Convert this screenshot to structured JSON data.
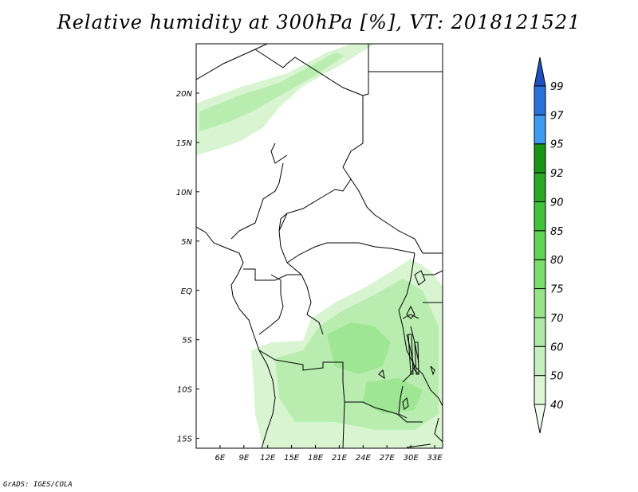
{
  "title": "Relative humidity at 300hPa [%], VT: 2018121521",
  "credit": "GrADS: IGES/COLA",
  "map": {
    "lon_range": [
      3,
      34
    ],
    "lat_range": [
      -16,
      25
    ],
    "lon_ticks": [
      {
        "value": 6,
        "label": "6E"
      },
      {
        "value": 9,
        "label": "9E"
      },
      {
        "value": 12,
        "label": "12E"
      },
      {
        "value": 15,
        "label": "15E"
      },
      {
        "value": 18,
        "label": "18E"
      },
      {
        "value": 21,
        "label": "21E"
      },
      {
        "value": 24,
        "label": "24E"
      },
      {
        "value": 27,
        "label": "27E"
      },
      {
        "value": 30,
        "label": "30E"
      },
      {
        "value": 33,
        "label": "33E"
      }
    ],
    "lat_ticks": [
      {
        "value": 20,
        "label": "20N"
      },
      {
        "value": 15,
        "label": "15N"
      },
      {
        "value": 10,
        "label": "10N"
      },
      {
        "value": 5,
        "label": "5N"
      },
      {
        "value": 0,
        "label": "EQ"
      },
      {
        "value": -5,
        "label": "5S"
      },
      {
        "value": -10,
        "label": "10S"
      },
      {
        "value": -15,
        "label": "15S"
      }
    ]
  },
  "colorbar": {
    "levels": [
      "40",
      "50",
      "60",
      "70",
      "75",
      "80",
      "85",
      "90",
      "92",
      "95",
      "97",
      "99"
    ],
    "colors": [
      "#f0fbee",
      "#dcf5d6",
      "#c6efbe",
      "#aee9a4",
      "#96e38a",
      "#7add6e",
      "#5fd455",
      "#40c23a",
      "#2aa827",
      "#1a9416",
      "#3d9bf0",
      "#2a72db",
      "#1e50c2"
    ]
  }
}
